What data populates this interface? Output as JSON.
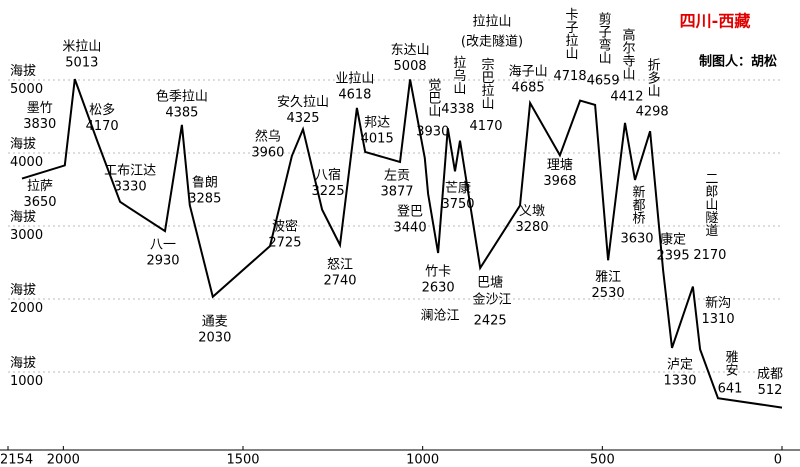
{
  "chart_data": {
    "type": "line",
    "title": "四川-西藏",
    "subtitle": "制图人：胡松",
    "annotations": [
      "拉拉山",
      "(改走隧道)",
      "澜沧江",
      "金沙江"
    ],
    "categories": [
      "拉萨",
      "墨竹",
      "米拉山",
      "松多",
      "工布江达",
      "八一",
      "色季拉山",
      "鲁朗",
      "通麦",
      "波密",
      "然乌",
      "安久拉山",
      "八宿",
      "怒江",
      "业拉山",
      "邦达",
      "左贡",
      "东达山",
      "觉巴山",
      "登巴",
      "竹卡",
      "拉乌山",
      "芒康",
      "宗巴拉山",
      "巴塘",
      "义墩",
      "海子山",
      "理塘",
      "卡子拉山",
      "剪子弯山",
      "雅江",
      "高尔寺山",
      "新都桥",
      "折多山",
      "康定",
      "泸定",
      "二郎山隧道",
      "新沟",
      "雅安",
      "成都"
    ],
    "x": [
      2115,
      1996,
      1968,
      1906,
      1842,
      1717,
      1670,
      1648,
      1584,
      1425,
      1364,
      1333,
      1280,
      1230,
      1183,
      1160,
      1063,
      1035,
      994,
      985,
      957,
      930,
      910,
      896,
      840,
      729,
      701,
      618,
      562,
      520,
      484,
      437,
      409,
      367,
      331,
      306,
      248,
      228,
      178,
      0
    ],
    "values": [
      3650,
      3830,
      5013,
      4170,
      3330,
      2930,
      4385,
      3285,
      2030,
      2725,
      3960,
      4325,
      3225,
      2740,
      4618,
      4015,
      3877,
      5008,
      3930,
      3440,
      2630,
      4338,
      3750,
      4170,
      2425,
      3280,
      4685,
      3968,
      4718,
      4659,
      2530,
      4412,
      3630,
      4298,
      2395,
      1330,
      2170,
      1310,
      641,
      512
    ],
    "color": "#000000",
    "xlim": [
      2154,
      0
    ],
    "xticks": [
      2154,
      2000,
      1500,
      1000,
      500,
      0
    ],
    "ylim": [
      0,
      6000
    ],
    "yticks": [
      {
        "value": 1000,
        "label": "海拔\n1000"
      },
      {
        "value": 2000,
        "label": "海拔\n2000"
      },
      {
        "value": 3000,
        "label": "海拔\n3000"
      },
      {
        "value": 4000,
        "label": "海拔\n4000"
      },
      {
        "value": 5000,
        "label": "海拔\n5000"
      }
    ],
    "grid": true
  }
}
